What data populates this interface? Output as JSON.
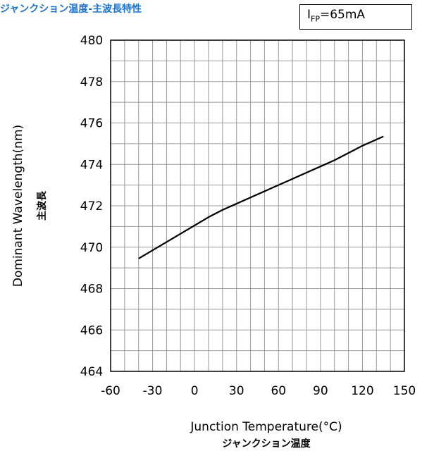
{
  "title": "ジャンクション温度-主波長特性",
  "condition": {
    "main": "I",
    "sub": "FP",
    "value": "=65mA"
  },
  "chart_data": {
    "type": "line",
    "title": "ジャンクション温度-主波長特性",
    "xlabel": "Junction Temperature(°C)",
    "xlabel_jp": "ジャンクション温度",
    "ylabel": "Dominant Wavelength(nm)",
    "ylabel_jp": "主波長",
    "xlim": [
      -60,
      150
    ],
    "ylim": [
      464,
      480
    ],
    "x_ticks": [
      -60,
      -30,
      0,
      30,
      60,
      90,
      120,
      150
    ],
    "y_ticks": [
      464,
      466,
      468,
      470,
      472,
      474,
      476,
      478,
      480
    ],
    "x_minor_step": 10,
    "y_minor_step": 1,
    "grid": true,
    "series": [
      {
        "name": "",
        "x": [
          -40,
          -30,
          -20,
          -10,
          0,
          10,
          20,
          30,
          40,
          50,
          60,
          70,
          80,
          90,
          100,
          110,
          120,
          130,
          135
        ],
        "values": [
          469.45,
          469.85,
          470.25,
          470.65,
          471.05,
          471.45,
          471.8,
          472.1,
          472.4,
          472.7,
          473.0,
          473.3,
          473.6,
          473.9,
          474.2,
          474.55,
          474.9,
          475.2,
          475.35
        ]
      }
    ],
    "line_color": "#000000"
  }
}
